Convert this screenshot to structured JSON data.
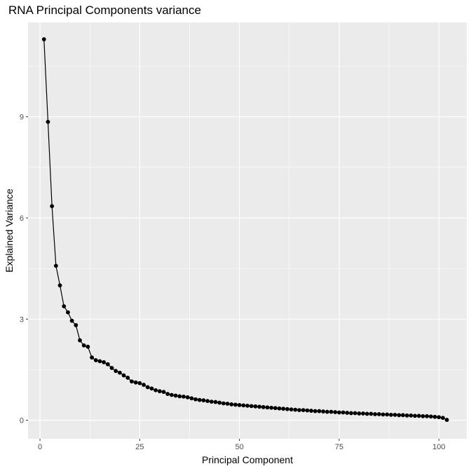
{
  "chart_data": {
    "type": "line",
    "title": "RNA Principal Components variance",
    "xlabel": "Principal Component",
    "ylabel": "Explained Variance",
    "xlim": [
      -3,
      107
    ],
    "ylim": [
      -0.55,
      11.8
    ],
    "x_ticks": [
      0,
      25,
      50,
      75,
      100
    ],
    "y_ticks": [
      0,
      3,
      6,
      9
    ],
    "x_tick_labels": [
      "0",
      "25",
      "50",
      "75",
      "100"
    ],
    "y_tick_labels": [
      "0",
      "3",
      "6",
      "9"
    ],
    "grid": true,
    "legend": "none",
    "colors": {
      "panel_background": "#ebebeb",
      "grid_major": "#ffffff",
      "line": "#000000",
      "point": "#000000",
      "tick_mark": "#333333",
      "tick_label": "#4d4d4d"
    },
    "series": [
      {
        "x": [
          1,
          2,
          3,
          4,
          5,
          6,
          7,
          8,
          9,
          10,
          11,
          12,
          13,
          14,
          15,
          16,
          17,
          18,
          19,
          20,
          21,
          22,
          23,
          24,
          25,
          26,
          27,
          28,
          29,
          30,
          31,
          32,
          33,
          34,
          35,
          36,
          37,
          38,
          39,
          40,
          41,
          42,
          43,
          44,
          45,
          46,
          47,
          48,
          49,
          50,
          51,
          52,
          53,
          54,
          55,
          56,
          57,
          58,
          59,
          60,
          61,
          62,
          63,
          64,
          65,
          66,
          67,
          68,
          69,
          70,
          71,
          72,
          73,
          74,
          75,
          76,
          77,
          78,
          79,
          80,
          81,
          82,
          83,
          84,
          85,
          86,
          87,
          88,
          89,
          90,
          91,
          92,
          93,
          94,
          95,
          96,
          97,
          98,
          99,
          100,
          101,
          102
        ],
        "y": [
          11.3,
          8.85,
          6.35,
          4.58,
          4.0,
          3.38,
          3.2,
          2.95,
          2.82,
          2.37,
          2.22,
          2.18,
          1.86,
          1.78,
          1.75,
          1.72,
          1.66,
          1.55,
          1.46,
          1.41,
          1.33,
          1.26,
          1.15,
          1.12,
          1.1,
          1.05,
          0.98,
          0.94,
          0.89,
          0.86,
          0.84,
          0.78,
          0.75,
          0.73,
          0.71,
          0.7,
          0.68,
          0.65,
          0.62,
          0.6,
          0.59,
          0.57,
          0.55,
          0.54,
          0.52,
          0.5,
          0.49,
          0.47,
          0.46,
          0.45,
          0.44,
          0.43,
          0.42,
          0.41,
          0.4,
          0.39,
          0.38,
          0.37,
          0.36,
          0.35,
          0.34,
          0.33,
          0.32,
          0.31,
          0.3,
          0.3,
          0.29,
          0.28,
          0.27,
          0.27,
          0.26,
          0.25,
          0.25,
          0.24,
          0.23,
          0.23,
          0.22,
          0.21,
          0.21,
          0.2,
          0.2,
          0.19,
          0.19,
          0.18,
          0.18,
          0.17,
          0.17,
          0.16,
          0.16,
          0.15,
          0.15,
          0.14,
          0.14,
          0.13,
          0.13,
          0.12,
          0.12,
          0.11,
          0.1,
          0.09,
          0.07,
          0.01
        ]
      }
    ]
  }
}
